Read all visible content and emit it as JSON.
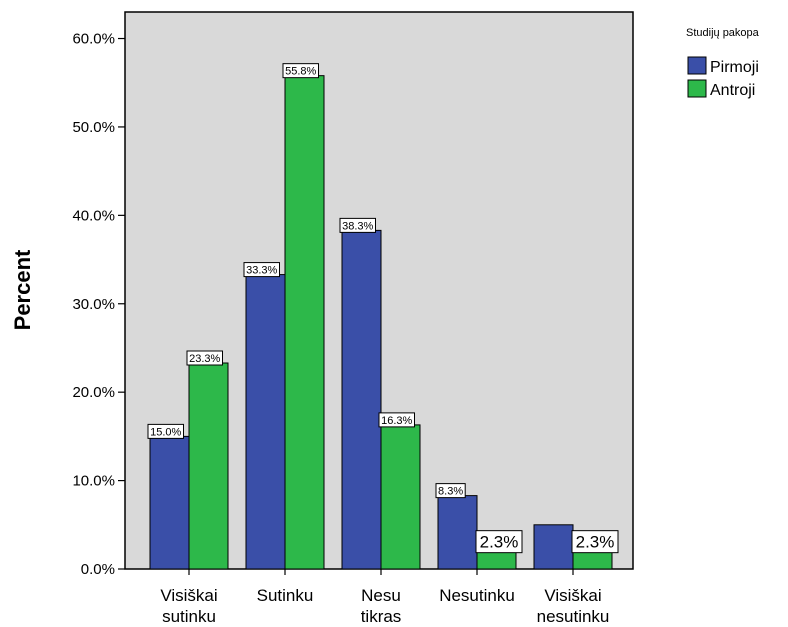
{
  "chart_data": {
    "type": "bar",
    "ylabel": "Percent",
    "ylim": [
      0,
      63
    ],
    "yticks": [
      "0.0%",
      "10.0%",
      "20.0%",
      "30.0%",
      "40.0%",
      "50.0%",
      "60.0%"
    ],
    "grid": false,
    "categories": [
      [
        "Visiškai",
        "sutinku"
      ],
      [
        "Sutinku"
      ],
      [
        "Nesu",
        "tikras"
      ],
      [
        "Nesutinku"
      ],
      [
        "Visiškai",
        "nesutinku"
      ]
    ],
    "series": [
      {
        "name": "Pirmoji",
        "color": "#3a4fa8",
        "values": [
          15.0,
          33.3,
          38.3,
          8.3,
          5.0
        ],
        "labels": [
          "15.0%",
          "33.3%",
          "38.3%",
          "8.3%",
          ""
        ]
      },
      {
        "name": "Antroji",
        "color": "#2db84a",
        "values": [
          23.3,
          55.8,
          16.3,
          2.3,
          2.3
        ],
        "labels": [
          "23.3%",
          "55.8%",
          "16.3%",
          "2.3%",
          "2.3%"
        ]
      }
    ],
    "legend": {
      "title": "Studijų pakopa",
      "placement": "top-right"
    },
    "plot_background": "#d9d9d9"
  }
}
